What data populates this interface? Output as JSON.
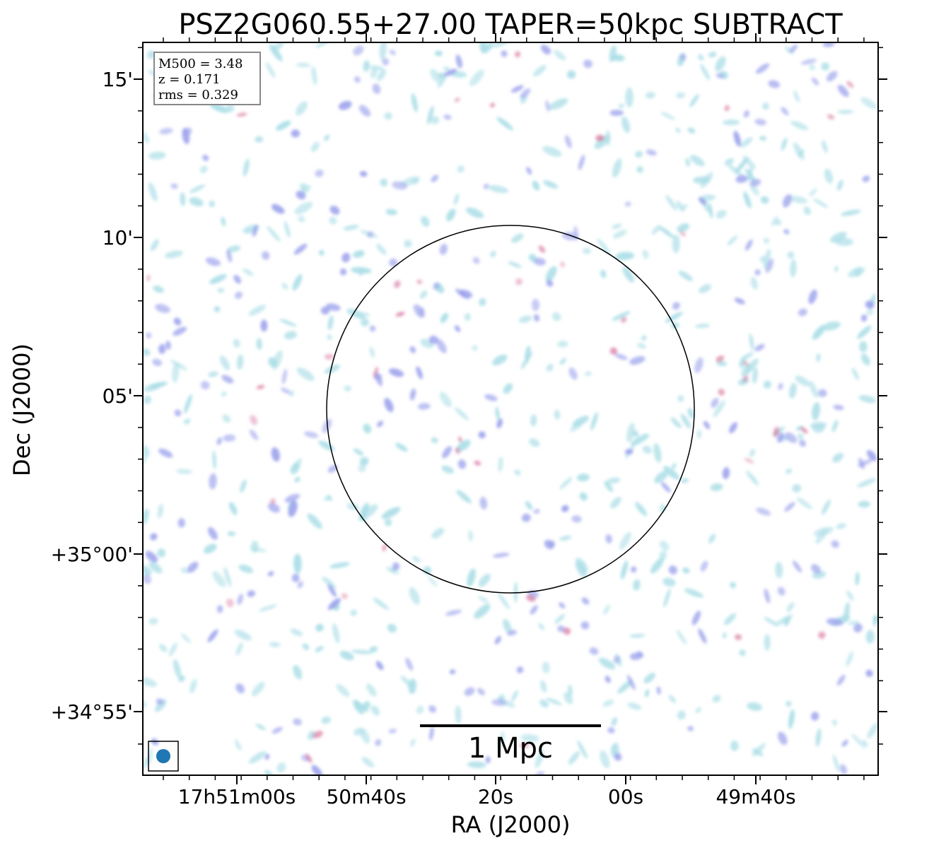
{
  "chart_data": {
    "type": "heatmap",
    "title": "PSZ2G060.55+27.00 TAPER=50kpc SUBTRACT",
    "xlabel": "RA (J2000)",
    "ylabel": "Dec (J2000)",
    "x_ticks": [
      "17h51m00s",
      "50m40s",
      "20s",
      "00s",
      "49m40s"
    ],
    "y_ticks": [
      "15'",
      "10'",
      "05'",
      "+35°00'",
      "+34°55'"
    ],
    "info_box": [
      "M500 = 3.48",
      "z = 0.171",
      "rms = 0.329"
    ],
    "scalebar_label": "1 Mpc",
    "grid": false,
    "colors": {
      "low_emission": "#a9dde6",
      "mid_emission": "#9aa0ec",
      "high_emission": "#d1608f",
      "beam": "#1f77b4",
      "circle": "#000000"
    }
  }
}
